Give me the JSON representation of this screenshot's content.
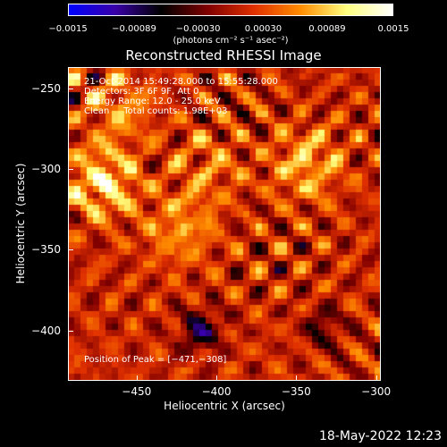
{
  "colorbar": {
    "ticks": [
      "−0.0015",
      "−0.00089",
      "−0.00030",
      "0.00030",
      "0.00089",
      "0.0015"
    ],
    "tick_values": [
      -0.0015,
      -0.00089,
      -0.0003,
      0.0003,
      0.00089,
      0.0015
    ],
    "units": "(photons cm⁻² s⁻¹ asec⁻²)",
    "stops": [
      "#0000ff",
      "#3a00a8",
      "#000000",
      "#800000",
      "#e03000",
      "#ff8c00",
      "#ffff80",
      "#ffffff"
    ]
  },
  "title": "Reconstructed RHESSI Image",
  "info": {
    "line1": "21-Oct-2014 15:49:28.000 to 15:55:28.000",
    "line2": "Detectors: 3F 6F 9F, Att 0",
    "line3": "Energy Range: 12.0 - 25.0 keV",
    "line4": "Clean     Total counts: 1.98E+03"
  },
  "peak_text": "Position of Peak = [−471,−308]",
  "chart_data": {
    "type": "heatmap",
    "title": "Reconstructed RHESSI Image",
    "xlabel": "Heliocentric X (arcsec)",
    "ylabel": "Heliocentric Y (arcsec)",
    "xlim": [
      -493,
      -297
    ],
    "ylim": [
      -431,
      -237
    ],
    "x_ticks": [
      -450,
      -400,
      -350,
      -300
    ],
    "x_tick_labels": [
      "−450",
      "−400",
      "−350",
      "−300"
    ],
    "y_ticks": [
      -250,
      -300,
      -350,
      -400
    ],
    "y_tick_labels": [
      "−250",
      "−300",
      "−350",
      "−400"
    ],
    "peak": [
      -471,
      -308
    ],
    "bright_sources": [
      {
        "x": -471,
        "y": -308,
        "strength": 1.0
      },
      {
        "x": -343,
        "y": -297,
        "strength": 0.75
      },
      {
        "x": -423,
        "y": -337,
        "strength": 0.6
      },
      {
        "x": -460,
        "y": -262,
        "strength": 0.55
      },
      {
        "x": -405,
        "y": -300,
        "strength": 0.45
      }
    ],
    "dark_sources": [
      {
        "x": -410,
        "y": -400,
        "strength": 0.8
      },
      {
        "x": -333,
        "y": -398,
        "strength": 0.5
      }
    ]
  },
  "footer_timestamp": "18-May-2022 12:23"
}
